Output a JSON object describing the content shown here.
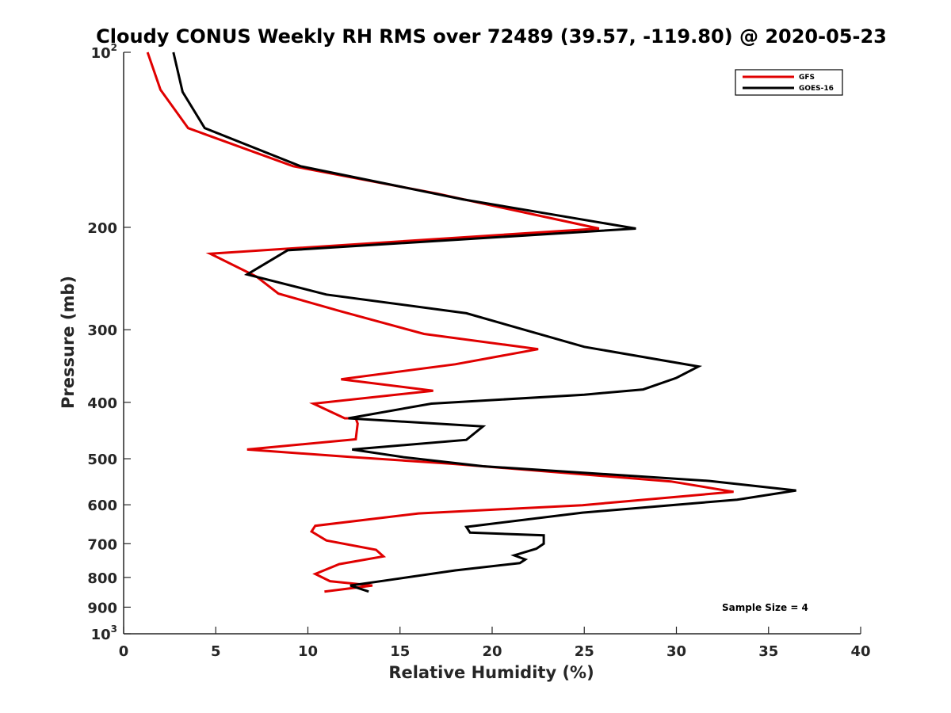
{
  "chart_data": {
    "type": "line",
    "title": "Cloudy CONUS Weekly RH RMS over 72489 (39.57, -119.80) @ 2020-05-23",
    "xlabel": "Relative Humidity (%)",
    "ylabel": "Pressure (mb)",
    "xlim": [
      0,
      40
    ],
    "ylim": [
      100,
      1000
    ],
    "y_scale": "log",
    "y_reversed": true,
    "grid": false,
    "legend_position": "top-right",
    "x_ticks": [
      {
        "value": 0,
        "label": "0"
      },
      {
        "value": 5,
        "label": "5"
      },
      {
        "value": 10,
        "label": "10"
      },
      {
        "value": 15,
        "label": "15"
      },
      {
        "value": 20,
        "label": "20"
      },
      {
        "value": 25,
        "label": "25"
      },
      {
        "value": 30,
        "label": "30"
      },
      {
        "value": 35,
        "label": "35"
      },
      {
        "value": 40,
        "label": "40"
      }
    ],
    "y_ticks": [
      {
        "value": 100,
        "label": "10",
        "sup": "2"
      },
      {
        "value": 200,
        "label": "200",
        "sup": ""
      },
      {
        "value": 300,
        "label": "300",
        "sup": ""
      },
      {
        "value": 400,
        "label": "400",
        "sup": ""
      },
      {
        "value": 500,
        "label": "500",
        "sup": ""
      },
      {
        "value": 600,
        "label": "600",
        "sup": ""
      },
      {
        "value": 700,
        "label": "700",
        "sup": ""
      },
      {
        "value": 800,
        "label": "800",
        "sup": ""
      },
      {
        "value": 900,
        "label": "900",
        "sup": ""
      },
      {
        "value": 1000,
        "label": "10",
        "sup": "3"
      }
    ],
    "annotation": "Sample Size = 4",
    "series": [
      {
        "name": "GFS",
        "color": "#e00000",
        "points": [
          [
            1.3,
            100
          ],
          [
            2.0,
            116
          ],
          [
            3.5,
            135
          ],
          [
            9.2,
            157
          ],
          [
            17.0,
            175
          ],
          [
            25.8,
            201
          ],
          [
            4.7,
            222
          ],
          [
            7.2,
            243
          ],
          [
            8.4,
            260
          ],
          [
            11.8,
            279
          ],
          [
            16.3,
            305
          ],
          [
            22.5,
            324
          ],
          [
            18.0,
            344
          ],
          [
            11.8,
            365
          ],
          [
            16.8,
            382
          ],
          [
            10.3,
            402
          ],
          [
            12.0,
            426
          ],
          [
            12.6,
            426
          ],
          [
            12.7,
            435
          ],
          [
            12.6,
            463
          ],
          [
            6.7,
            482
          ],
          [
            12.5,
            497
          ],
          [
            17.8,
            510
          ],
          [
            29.7,
            547
          ],
          [
            33.1,
            570
          ],
          [
            24.9,
            601
          ],
          [
            16.0,
            621
          ],
          [
            10.4,
            652
          ],
          [
            10.2,
            667
          ],
          [
            11.0,
            691
          ],
          [
            13.7,
            717
          ],
          [
            14.1,
            736
          ],
          [
            11.7,
            759
          ],
          [
            10.4,
            789
          ],
          [
            11.2,
            812
          ],
          [
            13.5,
            826
          ],
          [
            10.9,
            846
          ]
        ]
      },
      {
        "name": "GOES-16",
        "color": "#000000",
        "points": [
          [
            2.7,
            100
          ],
          [
            3.2,
            117
          ],
          [
            4.4,
            135
          ],
          [
            9.6,
            157
          ],
          [
            18.4,
            179
          ],
          [
            27.8,
            201
          ],
          [
            8.9,
            219
          ],
          [
            6.7,
            241
          ],
          [
            11.0,
            261
          ],
          [
            18.6,
            281
          ],
          [
            25.0,
            321
          ],
          [
            31.2,
            347
          ],
          [
            30.0,
            363
          ],
          [
            28.2,
            380
          ],
          [
            25.0,
            388
          ],
          [
            16.7,
            402
          ],
          [
            12.2,
            426
          ],
          [
            19.5,
            440
          ],
          [
            18.6,
            464
          ],
          [
            12.4,
            482
          ],
          [
            15.2,
            497
          ],
          [
            19.5,
            515
          ],
          [
            31.8,
            546
          ],
          [
            36.5,
            567
          ],
          [
            33.3,
            588
          ],
          [
            24.9,
            619
          ],
          [
            18.6,
            655
          ],
          [
            18.8,
            670
          ],
          [
            22.8,
            677
          ],
          [
            22.8,
            700
          ],
          [
            22.4,
            714
          ],
          [
            21.2,
            733
          ],
          [
            21.8,
            745
          ],
          [
            21.5,
            756
          ],
          [
            18.0,
            778
          ],
          [
            14.2,
            810
          ],
          [
            12.3,
            826
          ],
          [
            13.3,
            846
          ]
        ]
      }
    ]
  }
}
